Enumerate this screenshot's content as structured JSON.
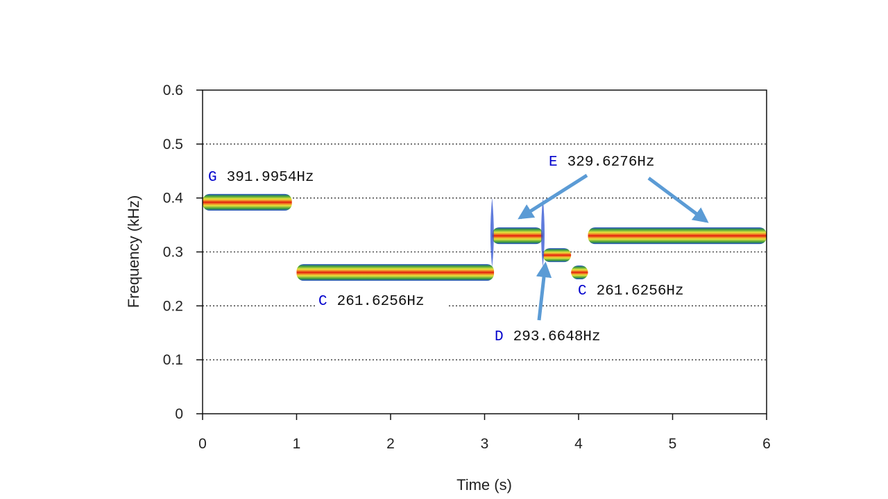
{
  "chart_data": {
    "type": "spectrogram",
    "xlabel": "Time (s)",
    "ylabel": "Frequency (kHz)",
    "xlim": [
      0,
      6
    ],
    "ylim": [
      0,
      0.6
    ],
    "x_ticks": [
      "0",
      "1",
      "2",
      "3",
      "4",
      "5",
      "6"
    ],
    "y_ticks": [
      "0",
      "0.1",
      "0.2",
      "0.3",
      "0.4",
      "0.5",
      "0.6"
    ],
    "grid": "horizontal dotted at 0.1, 0.2, 0.3, 0.4, 0.5",
    "colormap": [
      "#1f3fbf",
      "#3aa33a",
      "#e8e840",
      "#f07020",
      "#e02010"
    ],
    "segments": [
      {
        "note": "G",
        "start": 0.0,
        "end": 0.95,
        "freq_khz": 0.392
      },
      {
        "note": "C",
        "start": 1.0,
        "end": 3.1,
        "freq_khz": 0.262
      },
      {
        "note": "E",
        "start": 3.08,
        "end": 3.62,
        "freq_khz": 0.33
      },
      {
        "note": "D",
        "start": 3.62,
        "end": 3.92,
        "freq_khz": 0.294
      },
      {
        "note": "C",
        "start": 3.92,
        "end": 4.1,
        "freq_khz": 0.262
      },
      {
        "note": "E",
        "start": 4.1,
        "end": 6.0,
        "freq_khz": 0.33
      }
    ],
    "annotations": [
      {
        "letter": "G",
        "freq": "391.9954Hz"
      },
      {
        "letter": "C",
        "freq": "261.6256Hz"
      },
      {
        "letter": "E",
        "freq": "329.6276Hz"
      },
      {
        "letter": "D",
        "freq": "293.6648Hz"
      },
      {
        "letter": "C",
        "freq": "261.6256Hz"
      }
    ]
  },
  "arrow_color": "#5b9bd5"
}
